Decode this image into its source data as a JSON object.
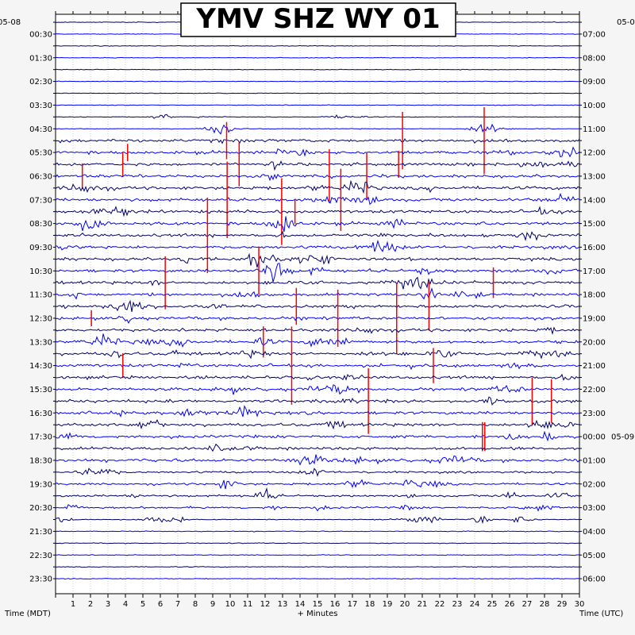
{
  "chart_data": {
    "type": "line",
    "title": "YMV SHZ WY 01",
    "xlabel": "+ Minutes",
    "left_axis_title": "Time (MDT)",
    "right_axis_title": "Time (UTC)",
    "left_date": "05-08",
    "right_date_top": "05-0",
    "right_date_next": "05-09",
    "xlim": [
      0,
      30
    ],
    "x_ticks": [
      "1",
      "2",
      "3",
      "4",
      "5",
      "6",
      "7",
      "8",
      "9",
      "10",
      "11",
      "12",
      "13",
      "14",
      "15",
      "16",
      "17",
      "18",
      "19",
      "20",
      "21",
      "22",
      "23",
      "24",
      "25",
      "26",
      "27",
      "28",
      "29",
      "30"
    ],
    "left_time_labels": [
      "00:30",
      "01:30",
      "02:30",
      "03:30",
      "04:30",
      "05:30",
      "06:30",
      "07:30",
      "08:30",
      "09:30",
      "10:30",
      "11:30",
      "12:30",
      "13:30",
      "14:30",
      "15:30",
      "16:30",
      "17:30",
      "18:30",
      "19:30",
      "20:30",
      "21:30",
      "22:30",
      "23:30"
    ],
    "right_time_labels": [
      "07:00",
      "08:00",
      "09:00",
      "10:00",
      "11:00",
      "12:00",
      "13:00",
      "14:00",
      "15:00",
      "16:00",
      "17:00",
      "18:00",
      "19:00",
      "20:00",
      "21:00",
      "22:00",
      "23:00",
      "00:00",
      "01:00",
      "02:00",
      "03:00",
      "04:00",
      "05:00",
      "06:00"
    ],
    "trace_count": 48,
    "trace_color_cycle": [
      "#00006b",
      "#0000ff"
    ],
    "clip_color": "#ff0000",
    "grid": true
  }
}
